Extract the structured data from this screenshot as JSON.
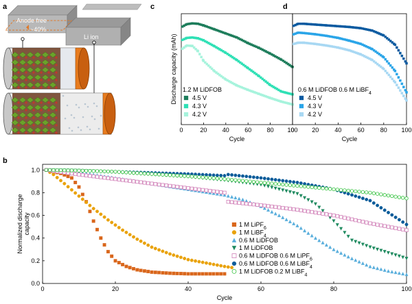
{
  "panel_labels": {
    "a": "a",
    "b": "b",
    "c": "c",
    "d": "d"
  },
  "schematic": {
    "anode_free_label": "Anode free",
    "percent_label": "~40%",
    "li_ion_label": "Li ion"
  },
  "colors": {
    "c_45": "#1d7d5b",
    "c_43": "#2ee0b5",
    "c_42": "#a6f3dc",
    "d_45": "#0a5aa0",
    "d_43": "#2aa5e8",
    "d_42": "#a8d8f3",
    "LiPF6": "#d9661b",
    "LiBF4": "#e9a20a",
    "LiDFOB06": "#59aedc",
    "LiDFOB1": "#1e8a5f",
    "mix_PF6": "#d07fb7",
    "mix_BF4": "#0b5c9a",
    "mix_1M": "#33c23d"
  },
  "chart_data": [
    {
      "id": "c",
      "type": "scatter",
      "xlabel": "Cycle",
      "ylabel": "Discharge capacity (mAh)",
      "xlim": [
        0,
        100
      ],
      "xticks": [
        0,
        20,
        40,
        60,
        80,
        100
      ],
      "ylim": [
        0,
        275
      ],
      "yticks": [],
      "title": "1.2 M LiDFOB",
      "legend_placement": "lower-left",
      "series": [
        {
          "name": "4.5 V",
          "color": "#1d7d5b",
          "marker": "square",
          "points": [
            [
              1,
              243
            ],
            [
              5,
              249
            ],
            [
              10,
              251
            ],
            [
              15,
              250
            ],
            [
              20,
              246
            ],
            [
              30,
              236
            ],
            [
              40,
              226
            ],
            [
              50,
              216
            ],
            [
              60,
              202
            ],
            [
              70,
              190
            ],
            [
              80,
              176
            ],
            [
              90,
              161
            ],
            [
              100,
              143
            ]
          ]
        },
        {
          "name": "4.3 V",
          "color": "#2ee0b5",
          "marker": "square",
          "points": [
            [
              1,
              210
            ],
            [
              5,
              215
            ],
            [
              10,
              216
            ],
            [
              15,
              214
            ],
            [
              20,
              209
            ],
            [
              30,
              194
            ],
            [
              40,
              178
            ],
            [
              50,
              160
            ],
            [
              60,
              140
            ],
            [
              70,
              120
            ],
            [
              80,
              98
            ],
            [
              90,
              82
            ],
            [
              100,
              75
            ]
          ]
        },
        {
          "name": "4.2 V",
          "color": "#a6f3dc",
          "marker": "square",
          "points": [
            [
              1,
              188
            ],
            [
              5,
              196
            ],
            [
              10,
              195
            ],
            [
              15,
              182
            ],
            [
              20,
              158
            ],
            [
              30,
              132
            ],
            [
              40,
              112
            ],
            [
              50,
              97
            ],
            [
              60,
              86
            ],
            [
              70,
              76
            ],
            [
              80,
              66
            ],
            [
              90,
              57
            ],
            [
              100,
              50
            ]
          ]
        }
      ]
    },
    {
      "id": "d",
      "type": "scatter",
      "xlabel": "Cycle",
      "ylabel": "",
      "xlim": [
        0,
        100
      ],
      "xticks": [
        0,
        20,
        40,
        60,
        80,
        100
      ],
      "ylim": [
        0,
        275
      ],
      "yticks": [],
      "title": "0.6 M LiDFOB 0.6 M LiBF",
      "title_subscript": "4",
      "legend_placement": "lower-left",
      "series": [
        {
          "name": "4.5 V",
          "color": "#0a5aa0",
          "marker": "square",
          "points": [
            [
              1,
              245
            ],
            [
              5,
              250
            ],
            [
              10,
              250
            ],
            [
              20,
              248
            ],
            [
              30,
              246
            ],
            [
              40,
              244
            ],
            [
              50,
              242
            ],
            [
              60,
              239
            ],
            [
              70,
              233
            ],
            [
              80,
              221
            ],
            [
              90,
              198
            ],
            [
              100,
              152
            ]
          ]
        },
        {
          "name": "4.3 V",
          "color": "#2aa5e8",
          "marker": "square",
          "points": [
            [
              1,
              224
            ],
            [
              5,
              228
            ],
            [
              10,
              227
            ],
            [
              20,
              224
            ],
            [
              30,
              220
            ],
            [
              40,
              215
            ],
            [
              50,
              208
            ],
            [
              60,
              200
            ],
            [
              70,
              187
            ],
            [
              80,
              167
            ],
            [
              90,
              133
            ],
            [
              100,
              80
            ]
          ]
        },
        {
          "name": "4.2 V",
          "color": "#a8d8f3",
          "marker": "square",
          "points": [
            [
              1,
              200
            ],
            [
              5,
              203
            ],
            [
              10,
              203
            ],
            [
              20,
              200
            ],
            [
              30,
              196
            ],
            [
              40,
              191
            ],
            [
              50,
              184
            ],
            [
              60,
              174
            ],
            [
              70,
              160
            ],
            [
              80,
              138
            ],
            [
              90,
              105
            ],
            [
              100,
              60
            ]
          ]
        }
      ]
    },
    {
      "id": "b",
      "type": "scatter",
      "xlabel": "Cycle",
      "ylabel": "Normalized discharge capacity",
      "ylabel_lines": [
        "Normalized discharge",
        "capacity"
      ],
      "xlim": [
        0,
        100
      ],
      "xticks": [
        0,
        20,
        40,
        60,
        80,
        100
      ],
      "ylim": [
        0,
        1.05
      ],
      "yticks": [
        0.0,
        0.2,
        0.4,
        0.6,
        0.8,
        1.0
      ],
      "yticklabels": [
        "0.0",
        "0.2",
        "0.4",
        "0.6",
        "0.8",
        "1.0"
      ],
      "legend_placement": "lower-right",
      "series": [
        {
          "name": "1 M LiPF",
          "sub": "6",
          "color": "#d9661b",
          "marker": "square",
          "filled": true,
          "points": [
            [
              1,
              1.0
            ],
            [
              5,
              0.97
            ],
            [
              8,
              0.93
            ],
            [
              10,
              0.85
            ],
            [
              12,
              0.72
            ],
            [
              14,
              0.55
            ],
            [
              16,
              0.4
            ],
            [
              18,
              0.28
            ],
            [
              20,
              0.2
            ],
            [
              23,
              0.15
            ],
            [
              26,
              0.12
            ],
            [
              30,
              0.1
            ],
            [
              35,
              0.09
            ],
            [
              40,
              0.085
            ],
            [
              45,
              0.085
            ],
            [
              50,
              0.085
            ]
          ]
        },
        {
          "name": "1 M LiBF",
          "sub": "4",
          "color": "#e9a20a",
          "marker": "circle",
          "filled": true,
          "points": [
            [
              1,
              1.0
            ],
            [
              3,
              0.96
            ],
            [
              6,
              0.88
            ],
            [
              10,
              0.77
            ],
            [
              14,
              0.66
            ],
            [
              18,
              0.56
            ],
            [
              22,
              0.47
            ],
            [
              26,
              0.39
            ],
            [
              30,
              0.32
            ],
            [
              35,
              0.26
            ],
            [
              40,
              0.21
            ],
            [
              45,
              0.18
            ],
            [
              50,
              0.15
            ],
            [
              52,
              0.14
            ]
          ]
        },
        {
          "name": "0.6 M LiDFOB",
          "color": "#59aedc",
          "marker": "triangle",
          "filled": true,
          "points": [
            [
              1,
              1.0
            ],
            [
              10,
              0.98
            ],
            [
              20,
              0.93
            ],
            [
              30,
              0.88
            ],
            [
              40,
              0.83
            ],
            [
              50,
              0.78
            ],
            [
              55,
              0.74
            ],
            [
              60,
              0.68
            ],
            [
              65,
              0.6
            ],
            [
              70,
              0.51
            ],
            [
              75,
              0.4
            ],
            [
              80,
              0.3
            ],
            [
              85,
              0.22
            ],
            [
              90,
              0.15
            ],
            [
              95,
              0.11
            ],
            [
              100,
              0.08
            ]
          ]
        },
        {
          "name": "1 M LiDFOB",
          "color": "#1e8a5f",
          "marker": "triangle-down",
          "filled": true,
          "points": [
            [
              1,
              1.0
            ],
            [
              10,
              0.995
            ],
            [
              20,
              0.98
            ],
            [
              30,
              0.96
            ],
            [
              40,
              0.94
            ],
            [
              50,
              0.91
            ],
            [
              60,
              0.87
            ],
            [
              70,
              0.79
            ],
            [
              75,
              0.7
            ],
            [
              80,
              0.55
            ],
            [
              85,
              0.38
            ],
            [
              90,
              0.32
            ],
            [
              95,
              0.27
            ],
            [
              100,
              0.22
            ]
          ]
        },
        {
          "name": "0.6 M LiDFOB 0.6 M LiPF",
          "sub": "6",
          "color": "#d07fb7",
          "marker": "square",
          "filled": false,
          "points": [
            [
              1,
              1.0
            ],
            [
              10,
              0.96
            ],
            [
              20,
              0.92
            ],
            [
              30,
              0.88
            ],
            [
              40,
              0.84
            ],
            [
              50,
              0.8
            ],
            [
              51,
              0.72
            ],
            [
              60,
              0.69
            ],
            [
              70,
              0.65
            ],
            [
              80,
              0.6
            ],
            [
              90,
              0.53
            ],
            [
              100,
              0.47
            ]
          ]
        },
        {
          "name": "0.6 M LiDFOB 0.6 M LiBF",
          "sub": "4",
          "color": "#0b5c9a",
          "marker": "circle",
          "filled": true,
          "points": [
            [
              1,
              1.0
            ],
            [
              10,
              0.995
            ],
            [
              20,
              0.985
            ],
            [
              30,
              0.975
            ],
            [
              40,
              0.965
            ],
            [
              50,
              0.95
            ],
            [
              51,
              0.96
            ],
            [
              60,
              0.93
            ],
            [
              70,
              0.89
            ],
            [
              80,
              0.83
            ],
            [
              90,
              0.73
            ],
            [
              100,
              0.52
            ]
          ]
        },
        {
          "name": "1 M LiDFOB 0.2 M LiBF",
          "sub": "4",
          "color": "#33c23d",
          "marker": "circle",
          "filled": false,
          "points": [
            [
              1,
              1.0
            ],
            [
              10,
              0.995
            ],
            [
              20,
              0.985
            ],
            [
              30,
              0.965
            ],
            [
              40,
              0.945
            ],
            [
              50,
              0.92
            ],
            [
              60,
              0.89
            ],
            [
              70,
              0.86
            ],
            [
              80,
              0.83
            ],
            [
              90,
              0.8
            ],
            [
              100,
              0.75
            ]
          ]
        }
      ]
    }
  ]
}
